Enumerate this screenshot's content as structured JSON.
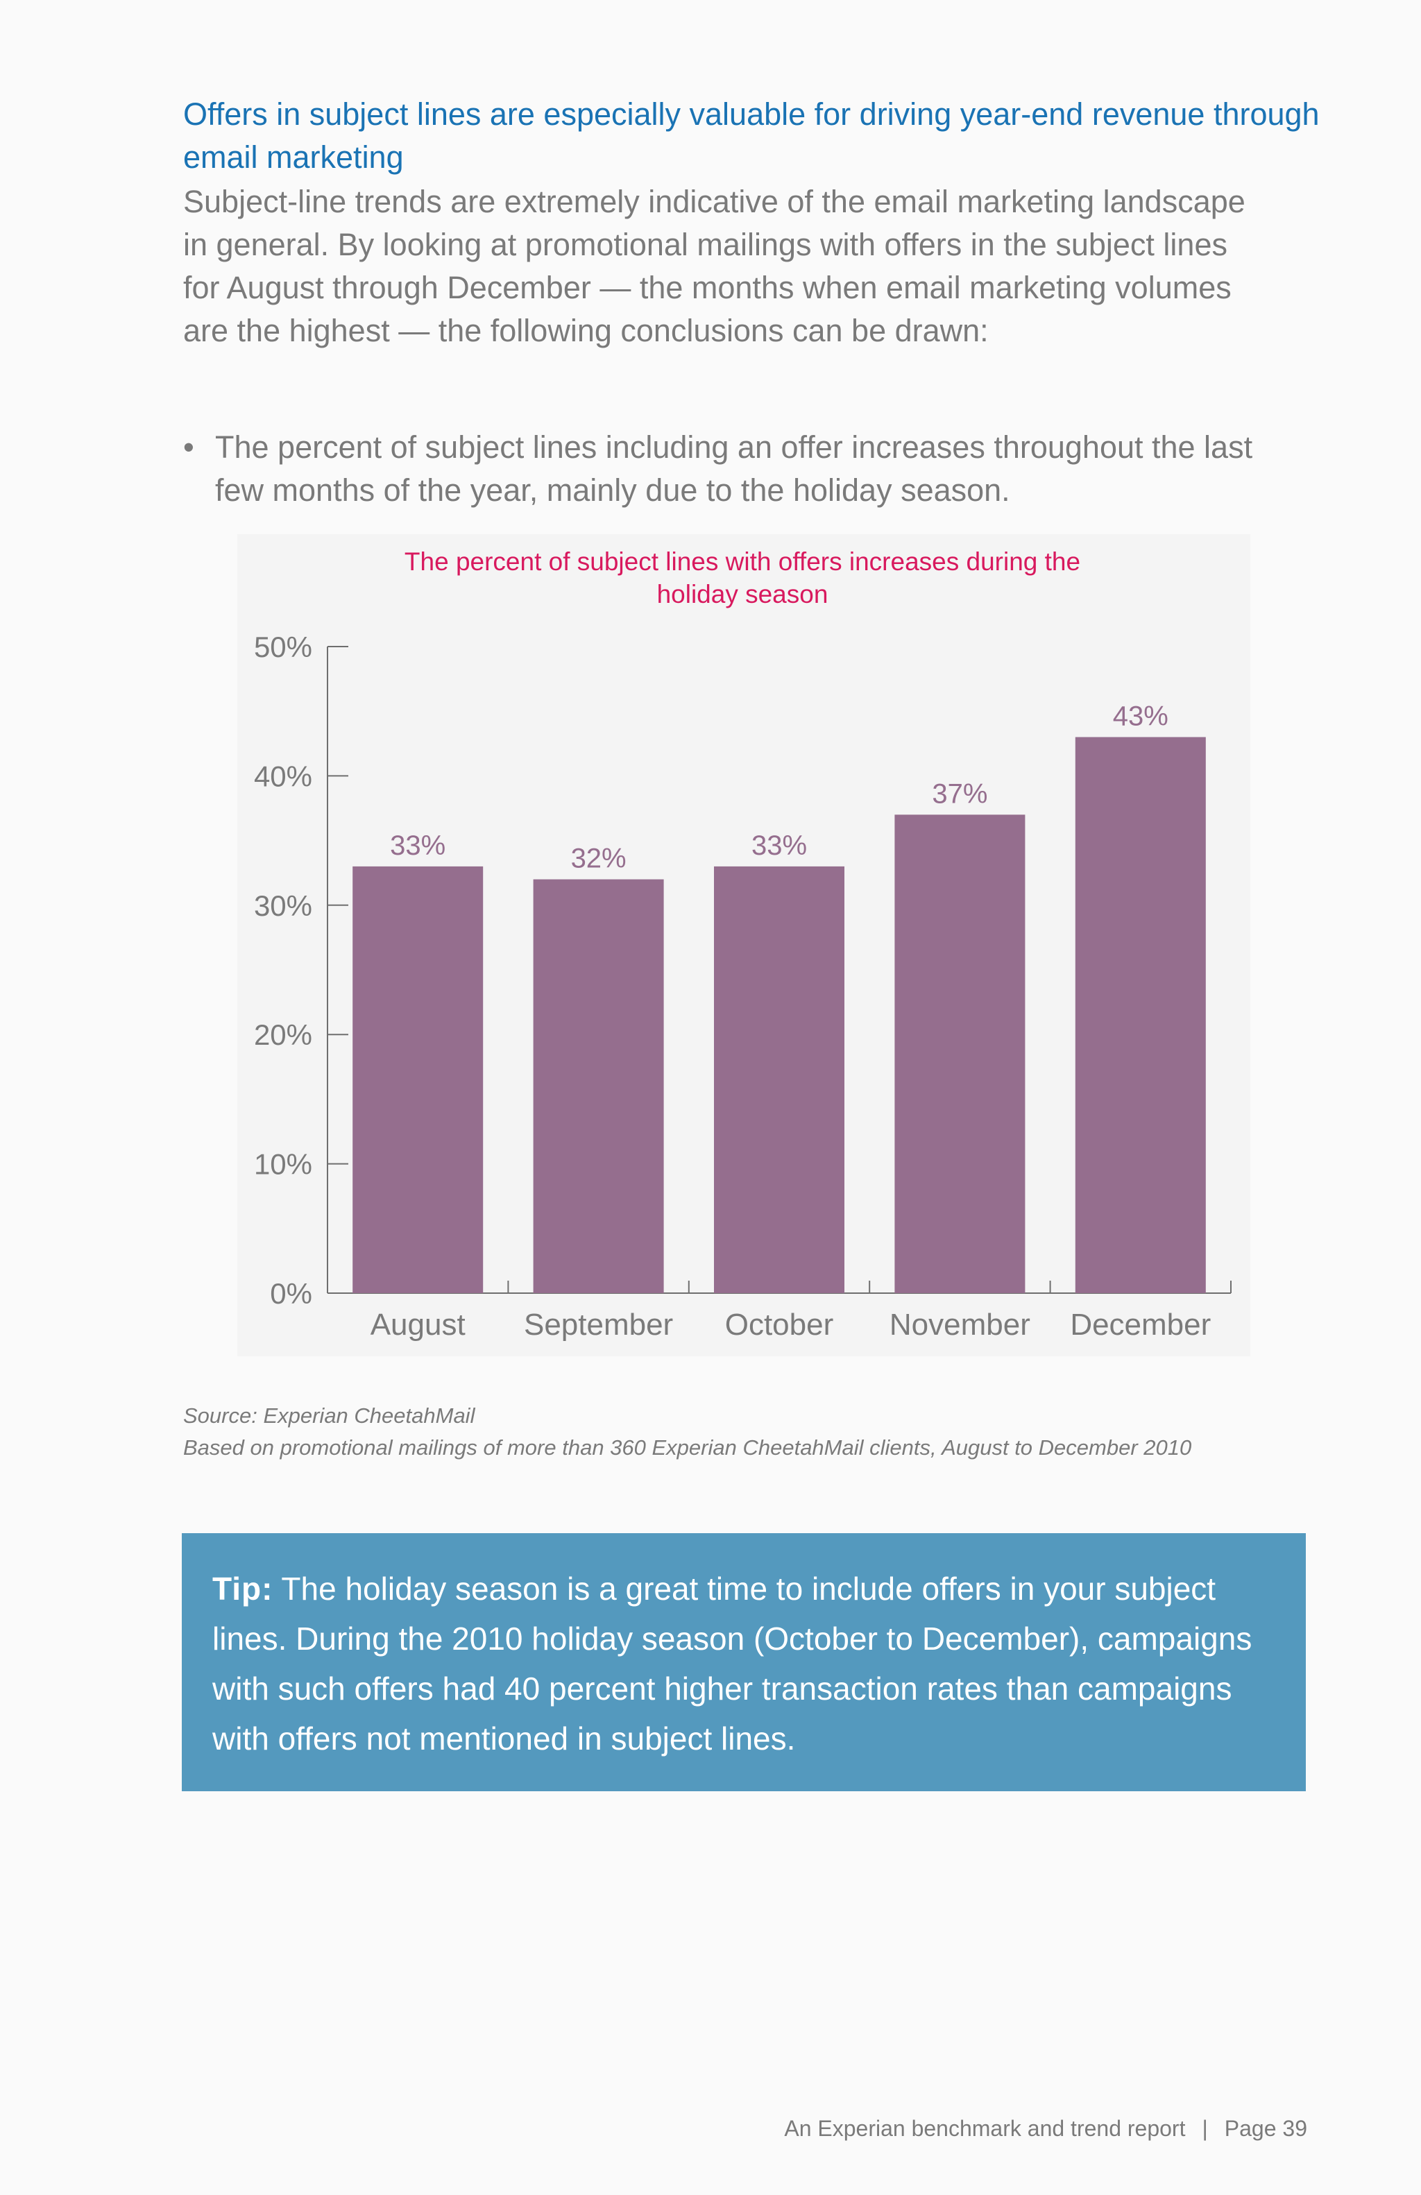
{
  "headline": "Offers in subject lines are especially valuable for driving year-end revenue through email marketing",
  "intro": "Subject-line trends are extremely indicative of the email marketing landscape in general. By looking at promotional mailings with offers in the subject lines for August through December — the months when email marketing volumes are the highest — the following conclusions can be drawn:",
  "bullets": [
    "The percent of subject lines including an offer increases throughout the last few months of the year, mainly due to the holiday season."
  ],
  "chart_data": {
    "type": "bar",
    "title": "The percent of subject lines with offers increases during the holiday season",
    "categories": [
      "August",
      "September",
      "October",
      "November",
      "December"
    ],
    "values": [
      33,
      32,
      33,
      37,
      43
    ],
    "value_labels": [
      "33%",
      "32%",
      "33%",
      "37%",
      "43%"
    ],
    "yticks": [
      0,
      10,
      20,
      30,
      40,
      50
    ],
    "ytick_labels": [
      "0%",
      "10%",
      "20%",
      "30%",
      "40%",
      "50%"
    ],
    "ylim": [
      0,
      50
    ],
    "xlabel": "",
    "ylabel": "",
    "bar_color": "#956e8e",
    "label_color": "#956e8e",
    "tick_color": "#7a7a7a",
    "axis_color": "#6e6e6e"
  },
  "source": {
    "line1": "Source: Experian CheetahMail",
    "line2": "Based on promotional mailings of more than 360 Experian CheetahMail clients, August to December 2010"
  },
  "tip": {
    "label": "Tip:",
    "text": "The holiday season is a great time to include offers in your subject lines.  During the 2010 holiday season (October to December), campaigns with such offers had 40 percent higher transaction rates than campaigns with offers not mentioned in subject lines."
  },
  "footer": {
    "report": "An Experian benchmark and trend report",
    "separator": "|",
    "page": "Page 39"
  },
  "colors": {
    "headline": "#1a73b4",
    "chart_title": "#d8195e",
    "tip_background": "#5499be",
    "body_text": "#7a7a7a"
  }
}
